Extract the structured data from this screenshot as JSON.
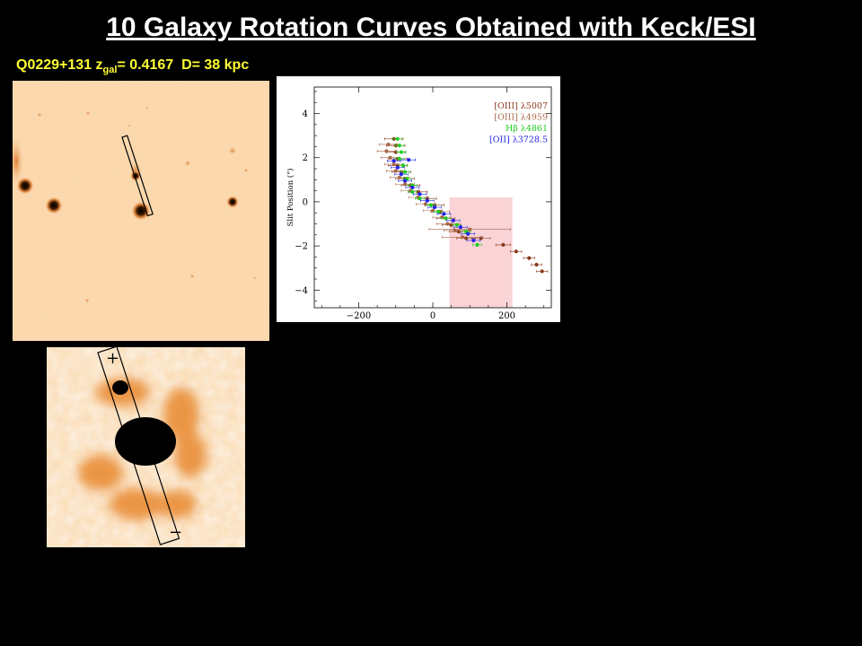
{
  "slide": {
    "title": "10 Galaxy Rotation Curves Obtained with Keck/ESI",
    "object_label": {
      "name": "Q0229+131",
      "z_symbol": "z",
      "z_subscript": "gal",
      "z_text": "= 0.4167",
      "distance_text": "D= 38 kpc"
    },
    "colors": {
      "background": "#000000",
      "title": "#ffffff",
      "label": "#ffff33",
      "image_bg": "#fbd9b0",
      "image_dark": "#000000"
    }
  },
  "zoom_image": {
    "plus_label": "+",
    "minus_label": "−"
  },
  "chart_data": {
    "type": "scatter",
    "title": "",
    "xlabel": "",
    "ylabel": "Slit Position (\")",
    "xlim": [
      -320,
      320
    ],
    "ylim": [
      -4.8,
      5.2
    ],
    "x_ticks": [
      -200,
      0,
      200
    ],
    "x_tick_labels": [
      "−200",
      "0",
      "200"
    ],
    "y_ticks": [
      4,
      2,
      0,
      -2,
      -4
    ],
    "y_tick_labels": [
      "4",
      "2",
      "0",
      "−2",
      "−4"
    ],
    "grid": false,
    "legend": "top-right",
    "shaded_region": {
      "x": [
        45,
        215
      ],
      "y": [
        -4.8,
        0.2
      ],
      "color": "#f9d3d6"
    },
    "series": [
      {
        "name": "[OIII] λ5007",
        "color": "#8a3b1d",
        "points": [
          [
            -105,
            2.85
          ],
          [
            -100,
            2.55
          ],
          [
            -100,
            2.25
          ],
          [
            -95,
            1.95
          ],
          [
            -95,
            1.65
          ],
          [
            -85,
            1.35
          ],
          [
            -75,
            1.05
          ],
          [
            -60,
            0.75
          ],
          [
            -40,
            0.45
          ],
          [
            -15,
            0.15
          ],
          [
            5,
            -0.15
          ],
          [
            20,
            -0.45
          ],
          [
            35,
            -0.75
          ],
          [
            50,
            -1.05
          ],
          [
            70,
            -1.35
          ],
          [
            90,
            -1.65
          ],
          [
            130,
            -1.65
          ],
          [
            190,
            -1.95
          ],
          [
            225,
            -2.25
          ],
          [
            260,
            -2.55
          ],
          [
            280,
            -2.85
          ],
          [
            295,
            -3.15
          ]
        ],
        "xerr": [
          25,
          25,
          25,
          25,
          25,
          25,
          25,
          25,
          25,
          25,
          25,
          25,
          25,
          25,
          25,
          25,
          25,
          20,
          15,
          15,
          15,
          15
        ]
      },
      {
        "name": "[OIII] λ4959",
        "color": "#a8684a",
        "points": [
          [
            -120,
            2.6
          ],
          [
            -125,
            2.3
          ],
          [
            -115,
            2.0
          ],
          [
            -105,
            1.7
          ],
          [
            -100,
            1.4
          ],
          [
            -90,
            1.1
          ],
          [
            -75,
            0.8
          ],
          [
            -60,
            0.5
          ],
          [
            -40,
            0.2
          ],
          [
            -20,
            -0.1
          ],
          [
            0,
            -0.4
          ],
          [
            25,
            -0.7
          ],
          [
            40,
            -1.0
          ],
          [
            60,
            -1.3
          ],
          [
            80,
            -1.6
          ],
          [
            100,
            -1.25
          ]
        ],
        "xerr": [
          25,
          25,
          25,
          25,
          25,
          25,
          25,
          25,
          25,
          25,
          25,
          25,
          30,
          30,
          55,
          110
        ]
      },
      {
        "name": "Hβ λ4861",
        "color": "#22cc22",
        "points": [
          [
            -95,
            2.85
          ],
          [
            -90,
            2.55
          ],
          [
            -85,
            2.25
          ],
          [
            -90,
            1.95
          ],
          [
            -80,
            1.65
          ],
          [
            -75,
            1.35
          ],
          [
            -70,
            1.05
          ],
          [
            -55,
            0.75
          ],
          [
            -55,
            0.45
          ],
          [
            -35,
            0.15
          ],
          [
            -5,
            -0.15
          ],
          [
            15,
            -0.45
          ],
          [
            35,
            -0.75
          ],
          [
            65,
            -1.05
          ],
          [
            90,
            -1.35
          ],
          [
            120,
            -1.95
          ]
        ],
        "xerr": [
          12,
          12,
          12,
          12,
          12,
          12,
          12,
          12,
          12,
          12,
          12,
          12,
          12,
          12,
          12,
          12
        ]
      },
      {
        "name": "[OII] λ3728.5",
        "color": "#2222ee",
        "points": [
          [
            -105,
            1.85
          ],
          [
            -95,
            1.55
          ],
          [
            -85,
            1.25
          ],
          [
            -75,
            0.95
          ],
          [
            -55,
            0.65
          ],
          [
            -35,
            0.35
          ],
          [
            -15,
            0.05
          ],
          [
            5,
            -0.25
          ],
          [
            30,
            -0.55
          ],
          [
            55,
            -0.85
          ],
          [
            75,
            -1.15
          ],
          [
            95,
            -1.45
          ],
          [
            110,
            -1.75
          ],
          [
            -65,
            1.9
          ]
        ],
        "xerr": [
          18,
          18,
          18,
          18,
          18,
          18,
          18,
          18,
          18,
          18,
          18,
          18,
          18,
          18
        ]
      }
    ]
  }
}
